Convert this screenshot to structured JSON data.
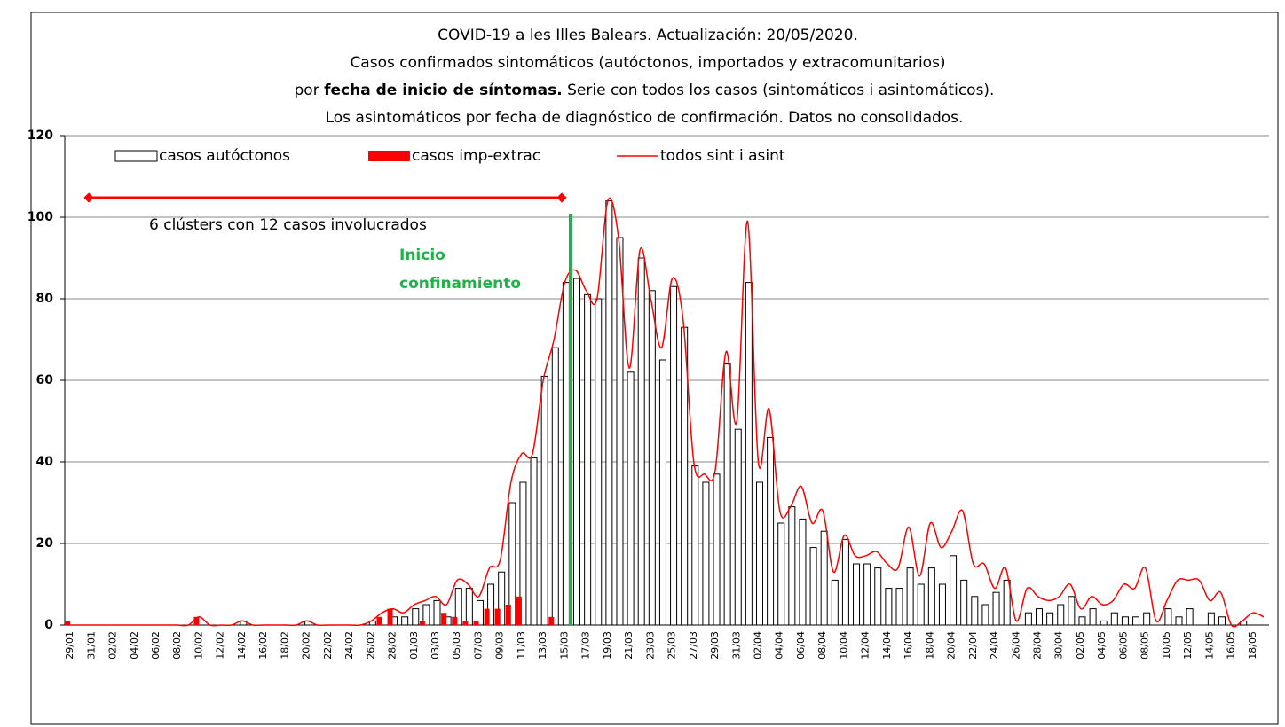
{
  "chart_data": {
    "type": "bar",
    "title": [
      "COVID-19 a les Illes Balears.  Actualización: 20/05/2020.",
      "Casos confirmados  sintomáticos  (autóctonos,  importados  y extracomunitarios)",
      "por",
      "fecha de inicio de síntomas.",
      "Serie  con todos los casos  (sintomáticos  i asintomáticos).",
      "Los asintomáticos  por fecha de diagnóstico  de confirmación.  Datos no consolidados."
    ],
    "annotations": {
      "clusters": "6 clústers con  12  casos involucrados",
      "lockdown": [
        "Inicio",
        "confinamiento"
      ]
    },
    "categories": [
      "29/01",
      null,
      "31/01",
      null,
      "02/02",
      null,
      "04/02",
      null,
      "06/02",
      null,
      "08/02",
      null,
      "10/02",
      null,
      "12/02",
      null,
      "14/02",
      null,
      "16/02",
      null,
      "18/02",
      null,
      "20/02",
      null,
      "22/02",
      null,
      "24/02",
      null,
      "26/02",
      null,
      "28/02",
      null,
      "01/03",
      null,
      "03/03",
      null,
      "05/03",
      null,
      "07/03",
      null,
      "09/03",
      null,
      "11/03",
      null,
      "13/03",
      null,
      "15/03",
      null,
      "17/03",
      null,
      "19/03",
      null,
      "21/03",
      null,
      "23/03",
      null,
      "25/03",
      null,
      "27/03",
      null,
      "29/03",
      null,
      "31/03",
      null,
      "02/04",
      null,
      "04/04",
      null,
      "06/04",
      null,
      "08/04",
      null,
      "10/04",
      null,
      "12/04",
      null,
      "14/04",
      null,
      "16/04",
      null,
      "18/04",
      null,
      "20/04",
      null,
      "22/04",
      null,
      "24/04",
      null,
      "26/04",
      null,
      "28/04",
      null,
      "30/04",
      null,
      "02/05",
      null,
      "04/05",
      null,
      "06/05",
      null,
      "08/05",
      null,
      "10/05",
      null,
      "12/05",
      null,
      "14/05",
      null,
      "16/05",
      null,
      "18/05",
      null
    ],
    "series": [
      {
        "name": "casos autóctonos",
        "color": "#ffffff",
        "kind": "bar",
        "values": [
          0,
          0,
          0,
          0,
          0,
          0,
          0,
          0,
          0,
          0,
          0,
          0,
          0,
          0,
          0,
          0,
          1,
          0,
          0,
          0,
          0,
          0,
          1,
          0,
          0,
          0,
          0,
          0,
          1,
          0,
          2,
          2,
          4,
          5,
          6,
          2,
          9,
          9,
          6,
          10,
          13,
          30,
          35,
          41,
          61,
          68,
          84,
          85,
          81,
          80,
          104,
          95,
          62,
          90,
          82,
          65,
          83,
          73,
          39,
          35,
          37,
          64,
          48,
          84,
          35,
          46,
          25,
          29,
          26,
          19,
          23,
          11,
          21,
          15,
          15,
          14,
          9,
          9,
          14,
          10,
          14,
          10,
          17,
          11,
          7,
          5,
          8,
          11,
          0,
          3,
          4,
          3,
          5,
          7,
          2,
          4,
          1,
          3,
          2,
          2,
          3,
          0,
          4,
          2,
          4,
          0,
          3,
          2,
          0,
          1,
          0,
          0
        ]
      },
      {
        "name": "casos imp-extrac",
        "color": "#ff0000",
        "kind": "bar",
        "values": [
          1,
          0,
          0,
          0,
          0,
          0,
          0,
          0,
          0,
          0,
          0,
          0,
          2,
          0,
          0,
          0,
          0,
          0,
          0,
          0,
          0,
          0,
          0,
          0,
          0,
          0,
          0,
          0,
          0,
          2,
          4,
          0,
          0,
          1,
          0,
          3,
          2,
          1,
          1,
          4,
          4,
          5,
          7,
          0,
          0,
          2,
          0,
          0,
          0,
          0,
          0,
          0,
          0,
          0,
          0,
          0,
          0,
          0,
          0,
          0,
          0,
          0,
          0,
          0,
          0,
          0,
          0,
          0,
          0,
          0,
          0,
          0,
          0,
          0,
          0,
          0,
          0,
          0,
          0,
          0,
          0,
          0,
          0,
          0,
          0,
          0,
          0,
          0,
          0,
          0,
          0,
          0,
          0,
          0,
          0,
          0,
          0,
          0,
          0,
          0,
          0,
          0,
          0,
          0,
          0,
          0,
          0,
          0,
          0,
          0,
          0,
          0
        ]
      },
      {
        "name": "todos sint i asint",
        "color": "#ff0000",
        "kind": "line",
        "values": [
          0,
          0,
          0,
          0,
          0,
          0,
          0,
          0,
          0,
          0,
          0,
          0,
          2,
          0,
          0,
          0,
          1,
          0,
          0,
          0,
          0,
          0,
          1,
          0,
          0,
          0,
          0,
          0,
          1,
          3,
          4,
          3,
          5,
          6,
          7,
          5,
          11,
          10,
          7,
          14,
          16,
          35,
          42,
          42,
          60,
          70,
          84,
          87,
          82,
          80,
          104,
          95,
          63,
          92,
          80,
          68,
          85,
          75,
          40,
          37,
          38,
          67,
          50,
          99,
          40,
          53,
          28,
          29,
          34,
          25,
          28,
          13,
          22,
          17,
          17,
          18,
          15,
          14,
          24,
          12,
          25,
          19,
          23,
          28,
          15,
          15,
          9,
          14,
          1,
          9,
          7,
          6,
          7,
          10,
          4,
          7,
          5,
          6,
          10,
          9,
          14,
          1,
          6,
          11,
          11,
          11,
          6,
          8,
          0,
          1,
          3,
          2
        ]
      }
    ],
    "ylim": [
      0,
      120
    ],
    "yticks": [
      0,
      20,
      40,
      60,
      80,
      100,
      120
    ],
    "grid": true,
    "legend": "top"
  }
}
